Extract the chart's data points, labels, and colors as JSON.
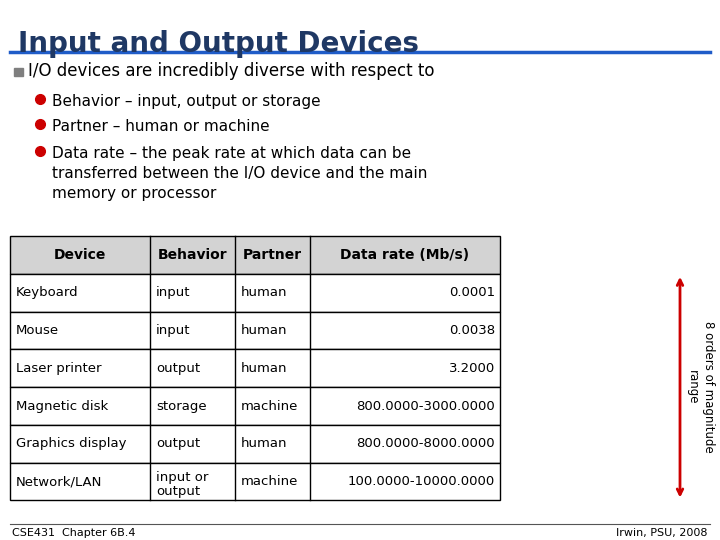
{
  "title": "Input and Output Devices",
  "title_color": "#1F3864",
  "title_underline_color": "#1F5CC8",
  "bg_color": "#FFFFFF",
  "bullet_color": "#CC0000",
  "square_bullet_color": "#7F7F7F",
  "main_bullet": "I/O devices are incredibly diverse with respect to",
  "sub_bullets": [
    "Behavior – input, output or storage",
    "Partner – human or machine",
    "Data rate – the peak rate at which data can be\ntransferred between the I/O device and the main\nmemory or processor"
  ],
  "table_headers": [
    "Device",
    "Behavior",
    "Partner",
    "Data rate (Mb/s)"
  ],
  "table_rows": [
    [
      "Keyboard",
      "input",
      "human",
      "0.0001"
    ],
    [
      "Mouse",
      "input",
      "human",
      "0.0038"
    ],
    [
      "Laser printer",
      "output",
      "human",
      "3.2000"
    ],
    [
      "Magnetic disk",
      "storage",
      "machine",
      "800.0000-3000.0000"
    ],
    [
      "Graphics display",
      "output",
      "human",
      "800.0000-8000.0000"
    ],
    [
      "Network/LAN",
      "input or\noutput",
      "machine",
      "100.0000-10000.0000"
    ]
  ],
  "arrow_label": "8 orders of magnitude\nrange",
  "arrow_color": "#CC0000",
  "footer_left": "CSE431  Chapter 6B.4",
  "footer_right": "Irwin, PSU, 2008",
  "text_color": "#000000",
  "header_bg": "#D3D3D3"
}
